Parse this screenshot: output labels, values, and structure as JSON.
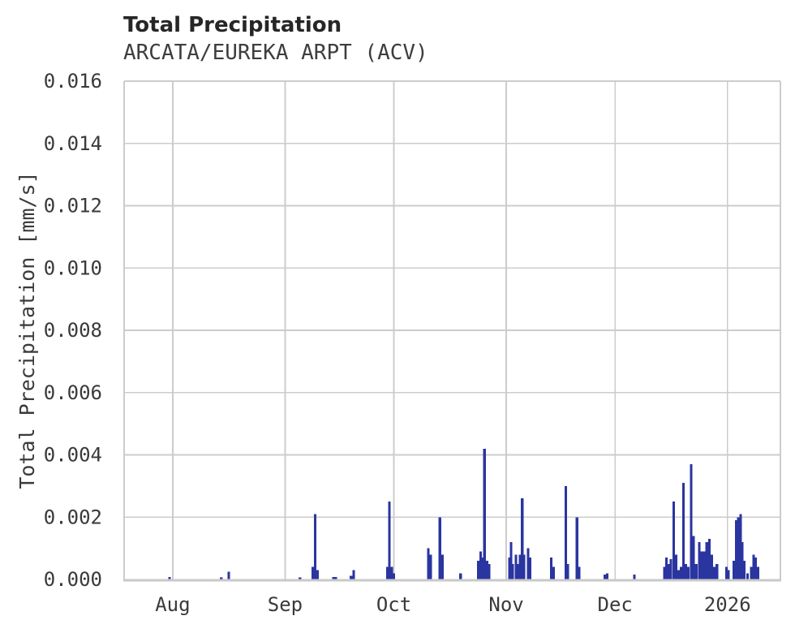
{
  "header": {
    "title": "Total Precipitation",
    "subtitle": "ARCATA/EUREKA ARPT (ACV)"
  },
  "colors": {
    "bar": "#2a35a0",
    "grid": "#cccccc",
    "spine": "#cccccc",
    "axis_bottom": "#c9c9c9",
    "tick_text": "#3a3a3a",
    "title_text": "#262626",
    "subtitle_text": "#3d3d3d",
    "background": "#ffffff"
  },
  "chart_data": {
    "type": "bar",
    "title": "Total Precipitation",
    "subtitle": "ARCATA/EUREKA ARPT (ACV)",
    "xlabel": "",
    "ylabel": "Total Precipitation [mm/s]",
    "ylim": [
      0,
      0.016
    ],
    "grid": true,
    "legend": false,
    "yticks": [
      {
        "value": 0.0,
        "label": "0.000"
      },
      {
        "value": 0.002,
        "label": "0.002"
      },
      {
        "value": 0.004,
        "label": "0.004"
      },
      {
        "value": 0.006,
        "label": "0.006"
      },
      {
        "value": 0.008,
        "label": "0.008"
      },
      {
        "value": 0.01,
        "label": "0.010"
      },
      {
        "value": 0.012,
        "label": "0.012"
      },
      {
        "value": 0.014,
        "label": "0.014"
      },
      {
        "value": 0.016,
        "label": "0.016"
      }
    ],
    "x_domain_days": 181,
    "xticks": [
      {
        "label": "Aug",
        "day": 13.4
      },
      {
        "label": "Sep",
        "day": 44.4
      },
      {
        "label": "Oct",
        "day": 74.4
      },
      {
        "label": "Nov",
        "day": 105.4
      },
      {
        "label": "Dec",
        "day": 135.4
      },
      {
        "label": "2026",
        "day": 166.4
      }
    ],
    "bar_width_days": 0.7,
    "series": [
      {
        "name": "Total Precipitation [mm/s]",
        "points": [
          [
            12.5,
            8e-05
          ],
          [
            26.8,
            6e-05
          ],
          [
            28.9,
            0.00025
          ],
          [
            48.5,
            6e-05
          ],
          [
            52.0,
            0.0004
          ],
          [
            52.7,
            0.0021
          ],
          [
            53.4,
            0.0003
          ],
          [
            57.7,
            8e-05
          ],
          [
            58.4,
            8e-05
          ],
          [
            62.6,
            0.00012
          ],
          [
            63.3,
            0.0003
          ],
          [
            72.6,
            0.0004
          ],
          [
            73.2,
            0.0025
          ],
          [
            73.8,
            0.0004
          ],
          [
            74.4,
            0.0002
          ],
          [
            83.9,
            0.001
          ],
          [
            84.6,
            0.0008
          ],
          [
            87.1,
            0.002
          ],
          [
            87.8,
            0.0008
          ],
          [
            92.8,
            0.0002
          ],
          [
            97.7,
            0.0006
          ],
          [
            98.3,
            0.0009
          ],
          [
            98.8,
            0.0007
          ],
          [
            99.4,
            0.0042
          ],
          [
            100.1,
            0.0006
          ],
          [
            100.7,
            0.0005
          ],
          [
            106.3,
            0.0007
          ],
          [
            106.7,
            0.0012
          ],
          [
            107.2,
            0.0005
          ],
          [
            108.1,
            0.0008
          ],
          [
            108.6,
            0.0005
          ],
          [
            109.2,
            0.0008
          ],
          [
            109.8,
            0.0026
          ],
          [
            110.3,
            0.0008
          ],
          [
            111.4,
            0.001
          ],
          [
            112.0,
            0.0007
          ],
          [
            117.8,
            0.0007
          ],
          [
            118.5,
            0.0004
          ],
          [
            121.8,
            0.003
          ],
          [
            122.4,
            0.0005
          ],
          [
            124.9,
            0.002
          ],
          [
            125.5,
            0.0004
          ],
          [
            132.6,
            0.00015
          ],
          [
            133.2,
            0.0002
          ],
          [
            140.7,
            0.00015
          ],
          [
            149.0,
            0.0004
          ],
          [
            149.6,
            0.0007
          ],
          [
            150.2,
            0.0005
          ],
          [
            150.8,
            0.00065
          ],
          [
            151.6,
            0.0025
          ],
          [
            152.2,
            0.0008
          ],
          [
            152.9,
            0.0003
          ],
          [
            153.6,
            0.0004
          ],
          [
            154.3,
            0.0031
          ],
          [
            154.9,
            0.0005
          ],
          [
            155.6,
            0.0004
          ],
          [
            156.4,
            0.0037
          ],
          [
            157.1,
            0.0014
          ],
          [
            157.8,
            0.0005
          ],
          [
            158.6,
            0.0012
          ],
          [
            159.3,
            0.0009
          ],
          [
            160.0,
            0.0009
          ],
          [
            160.7,
            0.0012
          ],
          [
            161.4,
            0.0013
          ],
          [
            162.1,
            0.0008
          ],
          [
            162.8,
            0.0004
          ],
          [
            163.5,
            0.0005
          ],
          [
            166.1,
            0.0004
          ],
          [
            166.7,
            0.0003
          ],
          [
            168.2,
            0.0006
          ],
          [
            168.8,
            0.0019
          ],
          [
            169.4,
            0.002
          ],
          [
            170.0,
            0.0021
          ],
          [
            170.5,
            0.0012
          ],
          [
            171.0,
            0.0006
          ],
          [
            171.9,
            0.0002
          ],
          [
            173.0,
            0.0004
          ],
          [
            173.6,
            0.0008
          ],
          [
            174.2,
            0.0007
          ],
          [
            174.8,
            0.0004
          ]
        ]
      }
    ]
  }
}
